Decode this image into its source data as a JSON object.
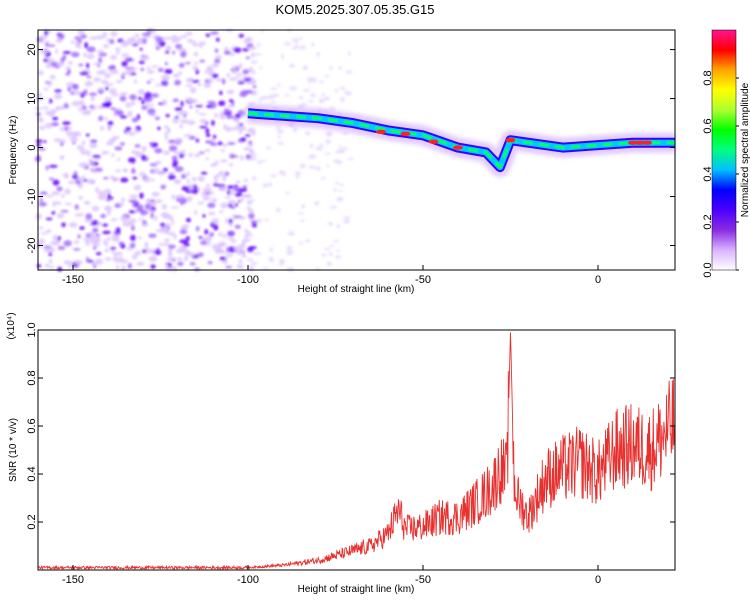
{
  "title": "KOM5.2025.307.05.35.G15",
  "chart_data": [
    {
      "type": "heatmap",
      "xlabel": "Height of straight line (km)",
      "ylabel": "Frequency (Hz)",
      "xlim": [
        -160,
        22
      ],
      "ylim": [
        -25,
        24
      ],
      "xticks": [
        -150,
        -100,
        -50,
        0
      ],
      "yticks": [
        -20,
        -10,
        0,
        10,
        20
      ],
      "colorbar": {
        "label": "Normalized spectral amplitude",
        "range": [
          0,
          1
        ],
        "ticks": [
          0.0,
          0.2,
          0.4,
          0.6,
          0.8
        ],
        "colors": [
          "#ffffff",
          "#d9b3ff",
          "#8a2be2",
          "#4b00ff",
          "#0000ff",
          "#00bfff",
          "#00ff7f",
          "#00ff00",
          "#adff2f",
          "#ffff00",
          "#ffa500",
          "#ff0000",
          "#ff1493"
        ]
      },
      "ridge": [
        {
          "x": -100,
          "y": 7
        },
        {
          "x": -90,
          "y": 6.5
        },
        {
          "x": -80,
          "y": 6
        },
        {
          "x": -70,
          "y": 5
        },
        {
          "x": -60,
          "y": 3.5
        },
        {
          "x": -50,
          "y": 2.5
        },
        {
          "x": -40,
          "y": 0
        },
        {
          "x": -32,
          "y": -1
        },
        {
          "x": -28,
          "y": -4
        },
        {
          "x": -25,
          "y": 1.5
        },
        {
          "x": -20,
          "y": 1
        },
        {
          "x": -10,
          "y": 0
        },
        {
          "x": 0,
          "y": 0.5
        },
        {
          "x": 10,
          "y": 1
        },
        {
          "x": 22,
          "y": 1
        }
      ]
    },
    {
      "type": "line",
      "xlabel": "Height of straight line (km)",
      "ylabel": "SNR (10 * v/v)",
      "yscale_label": "(x10⁴)",
      "xlim": [
        -160,
        22
      ],
      "ylim": [
        0,
        1.0
      ],
      "xticks": [
        -150,
        -100,
        -50,
        0
      ],
      "yticks": [
        0.2,
        0.4,
        0.6,
        0.8,
        1.0
      ],
      "series": [
        {
          "color": "#e8312f",
          "x": [
            -160,
            -140,
            -120,
            -100,
            -90,
            -80,
            -75,
            -70,
            -65,
            -60,
            -57,
            -55,
            -50,
            -45,
            -40,
            -35,
            -32,
            -30,
            -28,
            -26,
            -25,
            -24,
            -23,
            -20,
            -15,
            -10,
            -5,
            0,
            5,
            10,
            15,
            20,
            22
          ],
          "y": [
            0.01,
            0.01,
            0.01,
            0.01,
            0.02,
            0.04,
            0.06,
            0.08,
            0.1,
            0.15,
            0.25,
            0.17,
            0.18,
            0.22,
            0.22,
            0.28,
            0.32,
            0.35,
            0.42,
            0.4,
            1.0,
            0.38,
            0.3,
            0.22,
            0.38,
            0.42,
            0.45,
            0.4,
            0.5,
            0.52,
            0.5,
            0.58,
            0.62
          ]
        }
      ]
    }
  ]
}
